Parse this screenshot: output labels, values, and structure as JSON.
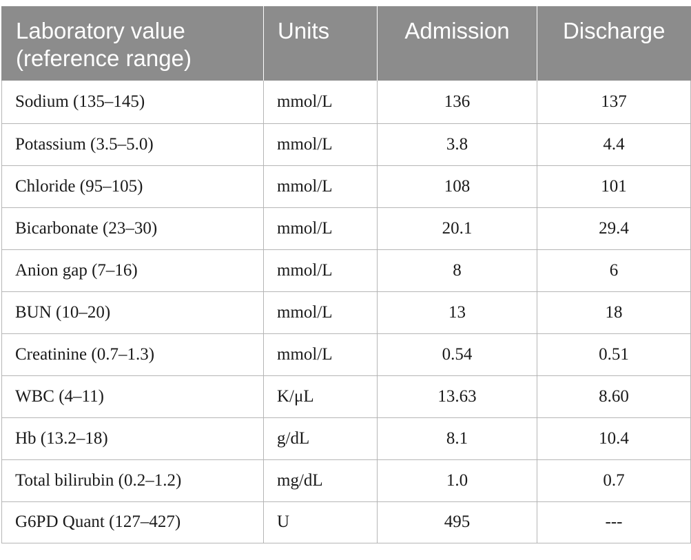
{
  "table": {
    "headers": {
      "col1_line1": "Laboratory value",
      "col1_line2": "(reference range)",
      "col2": "Units",
      "col3": "Admission",
      "col4": "Discharge"
    },
    "rows": [
      {
        "name": "Sodium (135–145)",
        "units": "mmol/L",
        "admission": "136",
        "discharge": "137"
      },
      {
        "name": "Potassium (3.5–5.0)",
        "units": "mmol/L",
        "admission": "3.8",
        "discharge": "4.4"
      },
      {
        "name": "Chloride (95–105)",
        "units": "mmol/L",
        "admission": "108",
        "discharge": "101"
      },
      {
        "name": "Bicarbonate (23–30)",
        "units": "mmol/L",
        "admission": "20.1",
        "discharge": "29.4"
      },
      {
        "name": "Anion gap (7–16)",
        "units": "mmol/L",
        "admission": "8",
        "discharge": "6"
      },
      {
        "name": "BUN (10–20)",
        "units": "mmol/L",
        "admission": "13",
        "discharge": "18"
      },
      {
        "name": "Creatinine (0.7–1.3)",
        "units": "mmol/L",
        "admission": "0.54",
        "discharge": "0.51"
      },
      {
        "name": "WBC (4–11)",
        "units": "K/μL",
        "admission": "13.63",
        "discharge": "8.60"
      },
      {
        "name": "Hb (13.2–18)",
        "units": "g/dL",
        "admission": "8.1",
        "discharge": "10.4"
      },
      {
        "name": "Total bilirubin (0.2–1.2)",
        "units": "mg/dL",
        "admission": "1.0",
        "discharge": "0.7"
      },
      {
        "name": "G6PD Quant (127–427)",
        "units": "U",
        "admission": "495",
        "discharge": "---"
      }
    ]
  },
  "colors": {
    "header_bg": "#8c8c8c",
    "header_text": "#ffffff",
    "rule": "#b5b5b5"
  }
}
